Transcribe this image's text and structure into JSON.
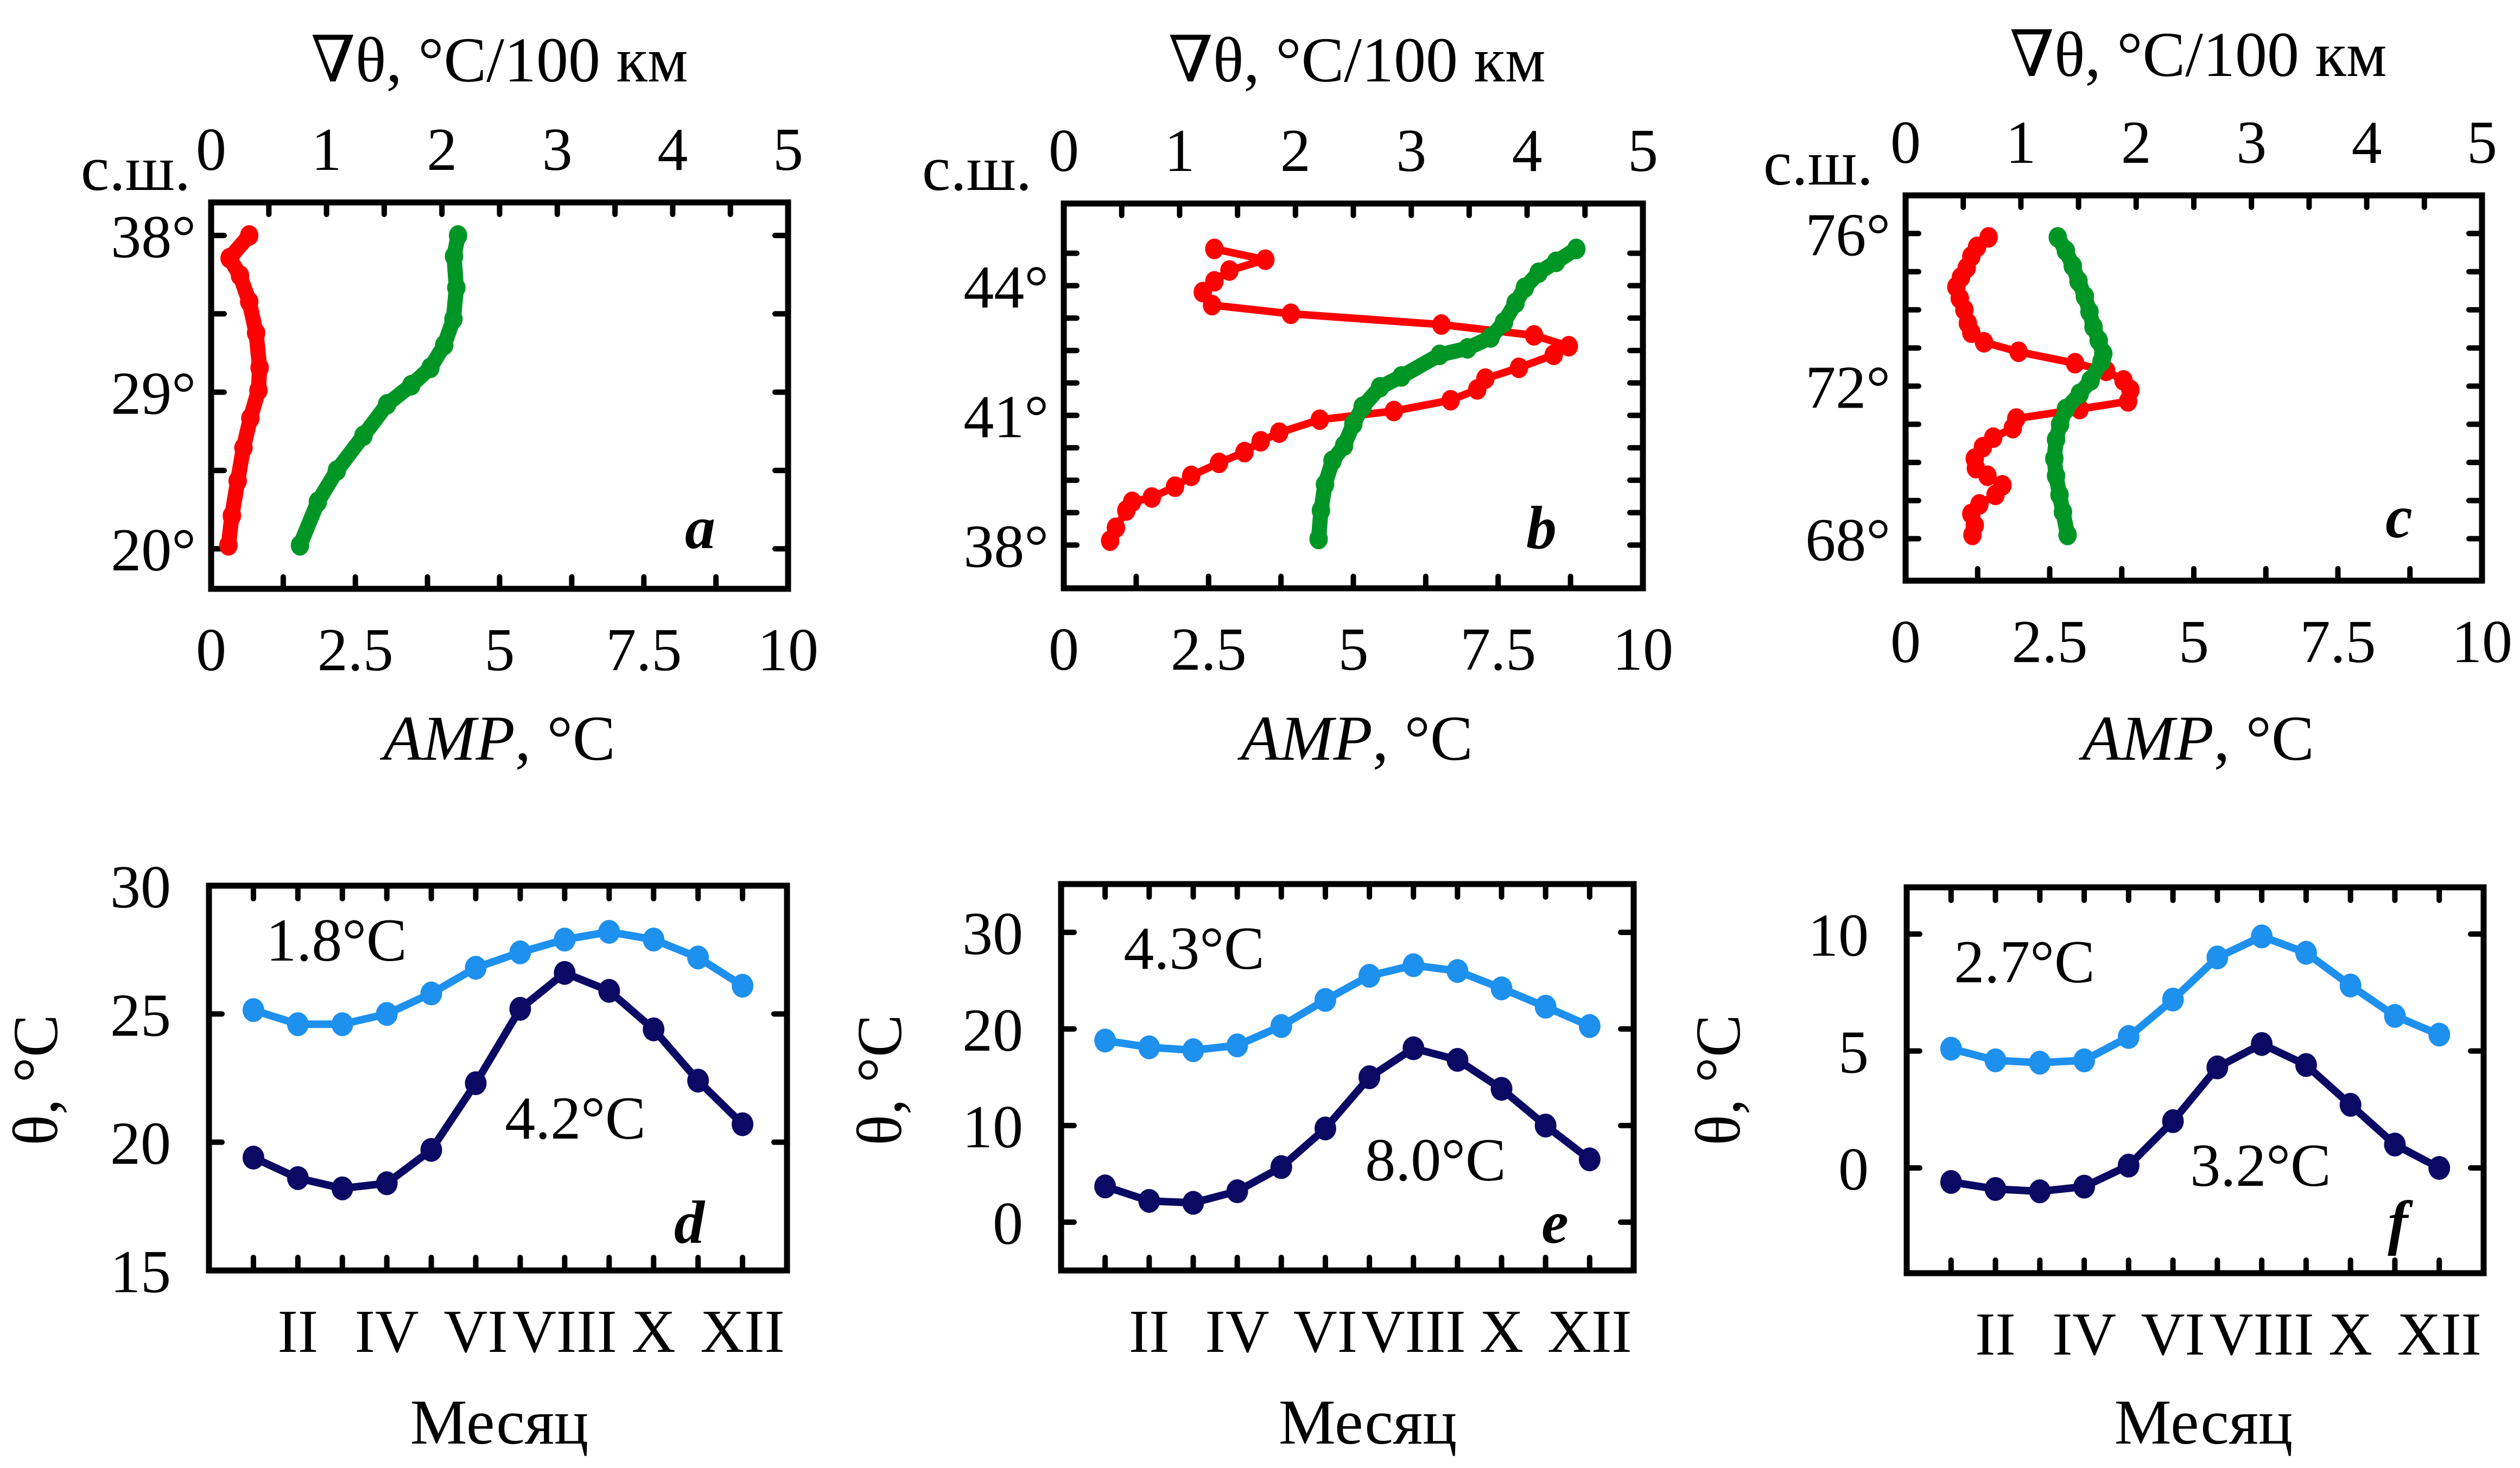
{
  "figure": {
    "colors": {
      "gradient": "#ff0000",
      "amplitude": "#009626",
      "series_south": "#1e90ee",
      "series_north": "#0a0a64"
    }
  },
  "chart_data": [
    {
      "panel": "a",
      "type": "line",
      "top_axis_label": "∇θ, °C/100 км",
      "top_axis_range": [
        0,
        5
      ],
      "top_axis_ticks": [
        "0",
        "1",
        "2",
        "3",
        "4",
        "5"
      ],
      "bottom_axis_label_italic": "AMP",
      "bottom_axis_label_rest": ", °C",
      "bottom_axis_range": [
        0,
        10
      ],
      "bottom_axis_ticks": [
        "0",
        "2.5",
        "5",
        "7.5",
        "10"
      ],
      "y_axis_title": "с.ш.",
      "y_range": [
        17.7,
        39.9
      ],
      "y_ticks": [
        {
          "v": 38,
          "label": "38°"
        },
        {
          "v": 29,
          "label": "29°"
        },
        {
          "v": 20,
          "label": "20°"
        }
      ],
      "y_minor_ticks": [
        33.5,
        24.5
      ],
      "series": [
        {
          "name": "∇θ",
          "axis": "top",
          "color_key": "gradient",
          "markers": "dense",
          "points": [
            [
              0.33,
              38.0
            ],
            [
              0.16,
              36.7
            ],
            [
              0.25,
              35.7
            ],
            [
              0.33,
              34.2
            ],
            [
              0.39,
              32.4
            ],
            [
              0.42,
              30.4
            ],
            [
              0.41,
              29.1
            ],
            [
              0.34,
              27.5
            ],
            [
              0.28,
              25.8
            ],
            [
              0.23,
              23.9
            ],
            [
              0.18,
              21.9
            ],
            [
              0.15,
              20.2
            ]
          ]
        },
        {
          "name": "AMP",
          "axis": "bottom",
          "color_key": "amplitude",
          "markers": "dense",
          "points": [
            [
              4.28,
              38.0
            ],
            [
              4.21,
              36.8
            ],
            [
              4.25,
              35.0
            ],
            [
              4.2,
              33.2
            ],
            [
              4.04,
              31.7
            ],
            [
              3.8,
              30.4
            ],
            [
              3.47,
              29.4
            ],
            [
              3.05,
              28.3
            ],
            [
              2.64,
              26.5
            ],
            [
              2.18,
              24.5
            ],
            [
              1.85,
              22.7
            ],
            [
              1.54,
              20.2
            ]
          ]
        }
      ]
    },
    {
      "panel": "b",
      "type": "line",
      "top_axis_label": "∇θ, °C/100 км",
      "top_axis_range": [
        0,
        5
      ],
      "top_axis_ticks": [
        "0",
        "1",
        "2",
        "3",
        "4",
        "5"
      ],
      "bottom_axis_label_italic": "AMP",
      "bottom_axis_label_rest": ", °C",
      "bottom_axis_range": [
        0,
        10
      ],
      "bottom_axis_ticks": [
        "0",
        "2.5",
        "5",
        "7.5",
        "10"
      ],
      "y_axis_title": "с.ш.",
      "y_range": [
        37.0,
        45.9
      ],
      "y_ticks": [
        {
          "v": 44,
          "label": "44°"
        },
        {
          "v": 41,
          "label": "41°"
        },
        {
          "v": 38,
          "label": "38°"
        }
      ],
      "y_minor_ticks": [
        38.75,
        39.5,
        40.25,
        41.75,
        42.5,
        43.25,
        44.75
      ],
      "series": [
        {
          "name": "∇θ",
          "axis": "top",
          "color_key": "gradient",
          "markers": "dots",
          "points": [
            [
              0.4,
              38.1
            ],
            [
              0.45,
              38.4
            ],
            [
              0.54,
              38.8
            ],
            [
              0.59,
              39.0
            ],
            [
              0.76,
              39.1
            ],
            [
              0.96,
              39.35
            ],
            [
              1.1,
              39.6
            ],
            [
              1.34,
              39.9
            ],
            [
              1.56,
              40.15
            ],
            [
              1.7,
              40.4
            ],
            [
              1.86,
              40.6
            ],
            [
              2.21,
              40.9
            ],
            [
              2.85,
              41.1
            ],
            [
              3.34,
              41.35
            ],
            [
              3.57,
              41.6
            ],
            [
              3.64,
              41.85
            ],
            [
              3.93,
              42.1
            ],
            [
              4.23,
              42.4
            ],
            [
              4.36,
              42.6
            ],
            [
              4.06,
              42.85
            ],
            [
              3.26,
              43.1
            ],
            [
              1.96,
              43.35
            ],
            [
              1.28,
              43.55
            ],
            [
              1.2,
              43.85
            ],
            [
              1.3,
              44.1
            ],
            [
              1.43,
              44.35
            ],
            [
              1.74,
              44.6
            ],
            [
              1.3,
              44.85
            ]
          ]
        },
        {
          "name": "AMP",
          "axis": "bottom",
          "color_key": "amplitude",
          "markers": "dense",
          "points": [
            [
              4.4,
              38.14
            ],
            [
              4.44,
              38.8
            ],
            [
              4.51,
              39.4
            ],
            [
              4.64,
              39.95
            ],
            [
              4.84,
              40.3
            ],
            [
              5.0,
              40.8
            ],
            [
              5.16,
              41.2
            ],
            [
              5.46,
              41.65
            ],
            [
              5.83,
              41.9
            ],
            [
              6.49,
              42.4
            ],
            [
              6.97,
              42.55
            ],
            [
              7.37,
              42.8
            ],
            [
              7.6,
              43.15
            ],
            [
              7.8,
              43.6
            ],
            [
              7.96,
              43.95
            ],
            [
              8.2,
              44.3
            ],
            [
              8.5,
              44.55
            ],
            [
              8.85,
              44.85
            ]
          ]
        }
      ]
    },
    {
      "panel": "c",
      "type": "line",
      "top_axis_label": "∇θ, °C/100 км",
      "top_axis_range": [
        0,
        5
      ],
      "top_axis_ticks": [
        "0",
        "1",
        "2",
        "3",
        "4",
        "5"
      ],
      "bottom_axis_label_italic": "AMP",
      "bottom_axis_label_rest": ", °C",
      "bottom_axis_range": [
        0,
        10
      ],
      "bottom_axis_ticks": [
        "0",
        "2.5",
        "5",
        "7.5",
        "10"
      ],
      "y_axis_title": "с.ш.",
      "y_range": [
        66.9,
        77.0
      ],
      "y_ticks": [
        {
          "v": 76,
          "label": "76°"
        },
        {
          "v": 72,
          "label": "72°"
        },
        {
          "v": 68,
          "label": "68°"
        }
      ],
      "y_minor_ticks": [
        75,
        74,
        73,
        71,
        70,
        69
      ],
      "series": [
        {
          "name": "∇θ",
          "axis": "top",
          "color_key": "gradient",
          "markers": "dots",
          "points": [
            [
              0.72,
              75.9
            ],
            [
              0.62,
              75.65
            ],
            [
              0.57,
              75.4
            ],
            [
              0.53,
              75.1
            ],
            [
              0.48,
              74.85
            ],
            [
              0.44,
              74.6
            ],
            [
              0.47,
              74.3
            ],
            [
              0.51,
              74.0
            ],
            [
              0.54,
              73.65
            ],
            [
              0.57,
              73.4
            ],
            [
              0.68,
              73.15
            ],
            [
              0.98,
              72.9
            ],
            [
              1.47,
              72.6
            ],
            [
              1.74,
              72.4
            ],
            [
              1.89,
              72.15
            ],
            [
              1.95,
              71.9
            ],
            [
              1.93,
              71.6
            ],
            [
              1.51,
              71.4
            ],
            [
              0.96,
              71.15
            ],
            [
              0.93,
              70.9
            ],
            [
              0.76,
              70.65
            ],
            [
              0.67,
              70.4
            ],
            [
              0.6,
              70.1
            ],
            [
              0.61,
              69.85
            ],
            [
              0.71,
              69.65
            ],
            [
              0.84,
              69.4
            ],
            [
              0.78,
              69.15
            ],
            [
              0.64,
              68.9
            ],
            [
              0.57,
              68.65
            ],
            [
              0.6,
              68.35
            ],
            [
              0.58,
              68.1
            ]
          ]
        },
        {
          "name": "AMP",
          "axis": "bottom",
          "color_key": "amplitude",
          "markers": "dense",
          "points": [
            [
              2.64,
              75.9
            ],
            [
              2.78,
              75.55
            ],
            [
              2.9,
              75.15
            ],
            [
              3.0,
              74.75
            ],
            [
              3.11,
              74.35
            ],
            [
              3.19,
              73.95
            ],
            [
              3.26,
              73.55
            ],
            [
              3.35,
              73.2
            ],
            [
              3.43,
              72.85
            ],
            [
              3.4,
              72.65
            ],
            [
              3.21,
              72.15
            ],
            [
              3.02,
              71.8
            ],
            [
              2.78,
              71.4
            ],
            [
              2.68,
              71.0
            ],
            [
              2.61,
              70.6
            ],
            [
              2.58,
              70.1
            ],
            [
              2.61,
              69.65
            ],
            [
              2.67,
              69.15
            ],
            [
              2.73,
              68.7
            ],
            [
              2.81,
              68.1
            ]
          ]
        }
      ]
    },
    {
      "panel": "d",
      "type": "line",
      "xlabel": "Месяц",
      "ylabel": "θ, °C",
      "x_ticks": [
        "II",
        "IV",
        "VI",
        "VIII",
        "X",
        "XII"
      ],
      "months": [
        "I",
        "II",
        "III",
        "IV",
        "V",
        "VI",
        "VII",
        "VIII",
        "IX",
        "X",
        "XI",
        "XII"
      ],
      "ylim": [
        15,
        30
      ],
      "y_ticks": [
        15,
        20,
        25,
        30
      ],
      "series": [
        {
          "name": "south",
          "color_key": "series_south",
          "annotation": "1.8°C",
          "values": [
            25.15,
            24.6,
            24.6,
            25.0,
            25.8,
            26.8,
            27.4,
            27.9,
            28.2,
            27.9,
            27.2,
            26.1
          ]
        },
        {
          "name": "north",
          "color_key": "series_north",
          "annotation": "4.2°C",
          "values": [
            19.4,
            18.6,
            18.2,
            18.4,
            19.7,
            22.3,
            25.2,
            26.6,
            25.9,
            24.4,
            22.4,
            20.7
          ]
        }
      ]
    },
    {
      "panel": "e",
      "type": "line",
      "xlabel": "Месяц",
      "ylabel": "θ, °C",
      "x_ticks": [
        "II",
        "IV",
        "VI",
        "VIII",
        "X",
        "XII"
      ],
      "months": [
        "I",
        "II",
        "III",
        "IV",
        "V",
        "VI",
        "VII",
        "VIII",
        "IX",
        "X",
        "XI",
        "XII"
      ],
      "ylim": [
        -5,
        35
      ],
      "y_ticks": [
        0,
        10,
        20,
        30
      ],
      "series": [
        {
          "name": "south",
          "color_key": "series_south",
          "annotation": "4.3°C",
          "values": [
            18.8,
            18.1,
            17.8,
            18.3,
            20.3,
            23.0,
            25.5,
            26.6,
            26.0,
            24.2,
            22.3,
            20.3
          ]
        },
        {
          "name": "north",
          "color_key": "series_north",
          "annotation": "8.0°C",
          "values": [
            3.7,
            2.2,
            2.0,
            3.2,
            5.7,
            9.7,
            15.0,
            18.0,
            16.8,
            13.8,
            10.0,
            6.5
          ]
        }
      ]
    },
    {
      "panel": "f",
      "type": "line",
      "xlabel": "Месяц",
      "ylabel": "θ, °C",
      "x_ticks": [
        "II",
        "IV",
        "VI",
        "VIII",
        "X",
        "XII"
      ],
      "months": [
        "I",
        "II",
        "III",
        "IV",
        "V",
        "VI",
        "VII",
        "VIII",
        "IX",
        "X",
        "XI",
        "XII"
      ],
      "ylim": [
        -4.5,
        12
      ],
      "y_ticks": [
        0,
        5,
        10
      ],
      "series": [
        {
          "name": "south",
          "color_key": "series_south",
          "annotation": "2.7°C",
          "values": [
            5.1,
            4.6,
            4.5,
            4.6,
            5.6,
            7.2,
            9.0,
            9.9,
            9.2,
            7.8,
            6.5,
            5.7
          ]
        },
        {
          "name": "north",
          "color_key": "series_north",
          "annotation": "3.2°C",
          "values": [
            -0.6,
            -0.9,
            -1.0,
            -0.8,
            0.1,
            2.0,
            4.3,
            5.3,
            4.4,
            2.7,
            1.0,
            0.0
          ]
        }
      ]
    }
  ]
}
